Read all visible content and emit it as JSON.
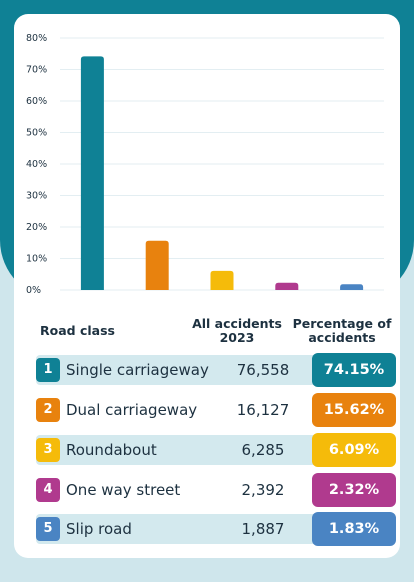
{
  "chart_data": {
    "type": "bar",
    "categories": [
      "Single carriageway",
      "Dual carriageway",
      "Roundabout",
      "One way street",
      "Slip road"
    ],
    "values": [
      74.15,
      15.62,
      6.09,
      2.32,
      1.83
    ],
    "ylim": [
      0,
      80
    ],
    "yticks": [
      0,
      10,
      20,
      30,
      40,
      50,
      60,
      70,
      80
    ],
    "ytick_labels": [
      "0%",
      "10%",
      "20%",
      "30%",
      "40%",
      "50%",
      "60%",
      "70%",
      "80%"
    ],
    "colors": [
      "#0f8195",
      "#e8820e",
      "#f5bb0a",
      "#b03a8e",
      "#4a84c3"
    ],
    "grid": true
  },
  "table": {
    "headers": {
      "road_class": "Road class",
      "all_accidents_line1": "All accidents",
      "all_accidents_line2": "2023",
      "percentage_line1": "Percentage of",
      "percentage_line2": "accidents"
    },
    "rows": [
      {
        "num": "1",
        "name": "Single carriageway",
        "count": "76,558",
        "pct": "74.15%"
      },
      {
        "num": "2",
        "name": "Dual carriageway",
        "count": "16,127",
        "pct": "15.62%"
      },
      {
        "num": "3",
        "name": "Roundabout",
        "count": "6,285",
        "pct": "6.09%"
      },
      {
        "num": "4",
        "name": "One way street",
        "count": "2,392",
        "pct": "2.32%"
      },
      {
        "num": "5",
        "name": "Slip road",
        "count": "1,887",
        "pct": "1.83%"
      }
    ]
  }
}
